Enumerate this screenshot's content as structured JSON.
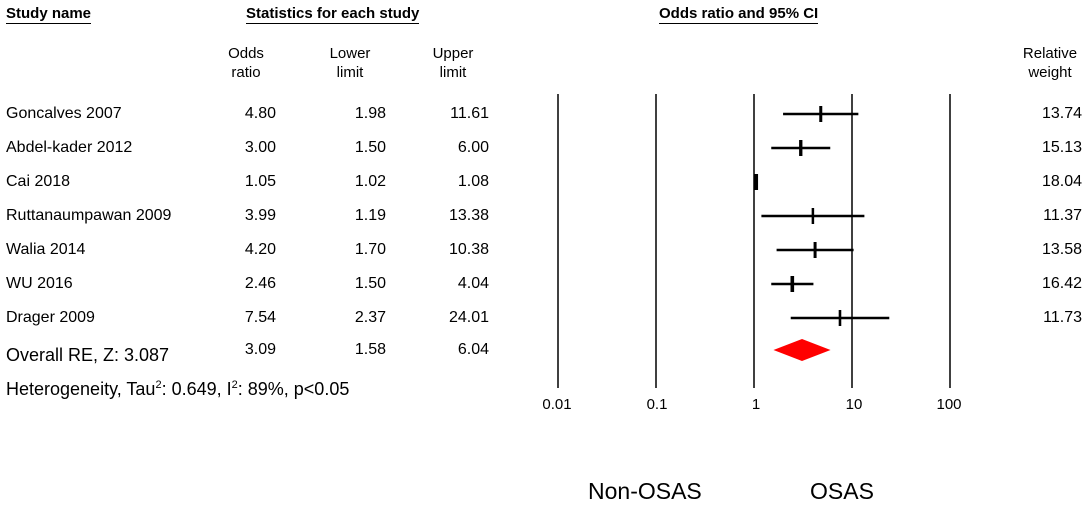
{
  "headers": {
    "study": "Study name",
    "stats": "Statistics for each study",
    "plot": "Odds ratio and 95% CI",
    "or_line1": "Odds",
    "or_line2": "ratio",
    "lower_line1": "Lower",
    "lower_line2": "limit",
    "upper_line1": "Upper",
    "upper_line2": "limit",
    "weight_line1": "Relative",
    "weight_line2": "weight"
  },
  "studies": [
    {
      "name": "Goncalves 2007",
      "or": "4.80",
      "lower": "1.98",
      "upper": "11.61",
      "weight": "13.74"
    },
    {
      "name": "Abdel-kader 2012",
      "or": "3.00",
      "lower": "1.50",
      "upper": "6.00",
      "weight": "15.13"
    },
    {
      "name": "Cai 2018",
      "or": "1.05",
      "lower": "1.02",
      "upper": "1.08",
      "weight": "18.04"
    },
    {
      "name": "Ruttanaumpawan 2009",
      "or": "3.99",
      "lower": "1.19",
      "upper": "13.38",
      "weight": "11.37"
    },
    {
      "name": "Walia 2014",
      "or": "4.20",
      "lower": "1.70",
      "upper": "10.38",
      "weight": "13.58"
    },
    {
      "name": "WU 2016",
      "or": "2.46",
      "lower": "1.50",
      "upper": "4.04",
      "weight": "16.42"
    },
    {
      "name": "Drager 2009",
      "or": "7.54",
      "lower": "2.37",
      "upper": "24.01",
      "weight": "11.73"
    }
  ],
  "overall": {
    "label": "Overall RE, Z: 3.087",
    "or": "3.09",
    "lower": "1.58",
    "upper": "6.04"
  },
  "heterogeneity": {
    "pre": "Heterogeneity, Tau",
    "sup1": "2",
    "mid": ": 0.649, I",
    "sup2": "2",
    "post": ": 89%, p<0.05"
  },
  "footer": {
    "left": "Non-OSAS",
    "right": "OSAS"
  },
  "colors": {
    "summary": "#ff0000",
    "line": "#000000"
  },
  "chart_data": {
    "type": "forest",
    "x_scale": "log",
    "xlim": [
      0.01,
      100
    ],
    "x_ticks": [
      "0.01",
      "0.1",
      "1",
      "10",
      "100"
    ],
    "x_tick_values": [
      0.01,
      0.1,
      1,
      10,
      100
    ],
    "studies": [
      {
        "name": "Goncalves 2007",
        "or": 4.8,
        "lower": 1.98,
        "upper": 11.61,
        "weight": 13.74
      },
      {
        "name": "Abdel-kader 2012",
        "or": 3.0,
        "lower": 1.5,
        "upper": 6.0,
        "weight": 15.13
      },
      {
        "name": "Cai 2018",
        "or": 1.05,
        "lower": 1.02,
        "upper": 1.08,
        "weight": 18.04
      },
      {
        "name": "Ruttanaumpawan 2009",
        "or": 3.99,
        "lower": 1.19,
        "upper": 13.38,
        "weight": 11.37
      },
      {
        "name": "Walia 2014",
        "or": 4.2,
        "lower": 1.7,
        "upper": 10.38,
        "weight": 13.58
      },
      {
        "name": "WU 2016",
        "or": 2.46,
        "lower": 1.5,
        "upper": 4.04,
        "weight": 16.42
      },
      {
        "name": "Drager 2009",
        "or": 7.54,
        "lower": 2.37,
        "upper": 24.01,
        "weight": 11.73
      }
    ],
    "summary": {
      "or": 3.09,
      "lower": 1.58,
      "upper": 6.04
    }
  }
}
